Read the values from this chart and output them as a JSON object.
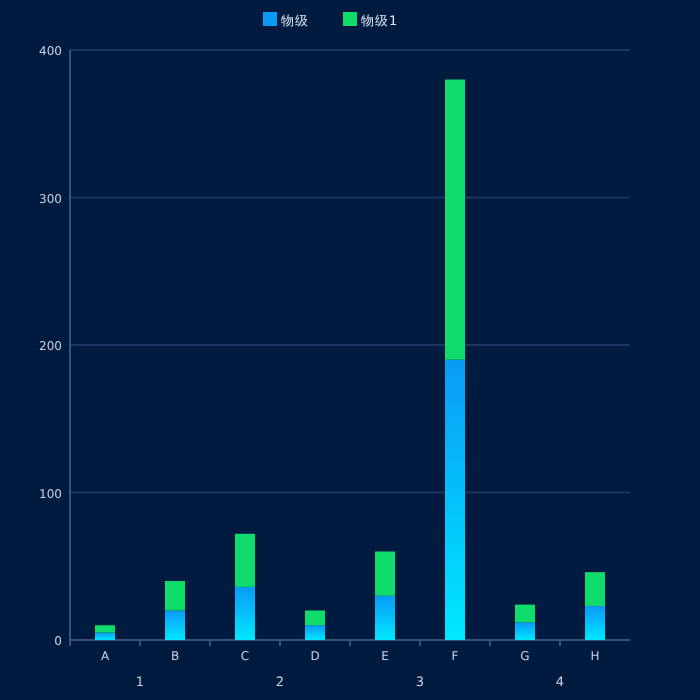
{
  "chart_data": {
    "type": "bar",
    "stacked": true,
    "categories": [
      "A",
      "B",
      "C",
      "D",
      "E",
      "F",
      "G",
      "H"
    ],
    "series": [
      {
        "name": "物级",
        "color": "#0a9af5",
        "values": [
          5,
          20,
          36,
          10,
          30,
          190,
          12,
          23
        ]
      },
      {
        "name": "物级1",
        "color": "#0fdc6a",
        "values": [
          5,
          20,
          36,
          10,
          30,
          190,
          12,
          23
        ]
      }
    ],
    "ylim": [
      0,
      400
    ],
    "yticks": [
      0,
      100,
      200,
      300,
      400
    ],
    "grid": "y",
    "legend": "top",
    "annotations": [
      "1",
      "2",
      "3",
      "4"
    ]
  }
}
